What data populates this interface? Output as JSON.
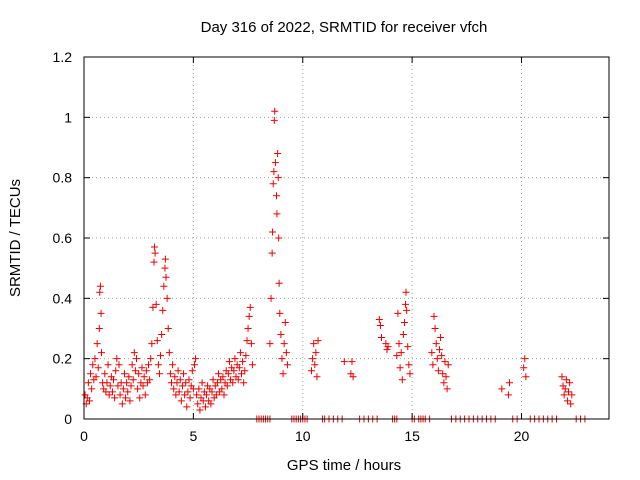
{
  "chart_data": {
    "type": "scatter",
    "title": "Day 316 of 2022, SRMTID for receiver vfch",
    "xlabel": "GPS time / hours",
    "ylabel": "SRMTID / TECUs",
    "xlim": [
      0,
      24
    ],
    "ylim": [
      0,
      1.2
    ],
    "xticks": [
      0,
      5,
      10,
      15,
      20
    ],
    "xtick_labels": [
      "0",
      "5",
      "10",
      "15",
      "20"
    ],
    "yticks": [
      0,
      0.2,
      0.4,
      0.6,
      0.8,
      1.0,
      1.2
    ],
    "ytick_labels": [
      "0",
      "0.2",
      "0.4",
      "0.6",
      "0.8",
      "1",
      "1.2"
    ],
    "grid": true,
    "marker": "+",
    "color": "#ee0000",
    "series": [
      {
        "name": "SRMTID",
        "points": [
          [
            0.05,
            0.08
          ],
          [
            0.1,
            0.05
          ],
          [
            0.15,
            0.07
          ],
          [
            0.2,
            0.12
          ],
          [
            0.25,
            0.06
          ],
          [
            0.3,
            0.15
          ],
          [
            0.35,
            0.1
          ],
          [
            0.4,
            0.18
          ],
          [
            0.45,
            0.13
          ],
          [
            0.5,
            0.2
          ],
          [
            0.55,
            0.14
          ],
          [
            0.6,
            0.25
          ],
          [
            0.65,
            0.17
          ],
          [
            0.7,
            0.3
          ],
          [
            0.72,
            0.42
          ],
          [
            0.75,
            0.44
          ],
          [
            0.78,
            0.35
          ],
          [
            0.8,
            0.22
          ],
          [
            0.85,
            0.12
          ],
          [
            0.9,
            0.1
          ],
          [
            0.95,
            0.15
          ],
          [
            1.0,
            0.09
          ],
          [
            1.05,
            0.12
          ],
          [
            1.1,
            0.18
          ],
          [
            1.15,
            0.08
          ],
          [
            1.2,
            0.11
          ],
          [
            1.25,
            0.14
          ],
          [
            1.3,
            0.09
          ],
          [
            1.35,
            0.13
          ],
          [
            1.4,
            0.07
          ],
          [
            1.45,
            0.16
          ],
          [
            1.5,
            0.2
          ],
          [
            1.55,
            0.11
          ],
          [
            1.6,
            0.18
          ],
          [
            1.65,
            0.08
          ],
          [
            1.7,
            0.12
          ],
          [
            1.75,
            0.05
          ],
          [
            1.8,
            0.1
          ],
          [
            1.85,
            0.15
          ],
          [
            1.9,
            0.07
          ],
          [
            1.95,
            0.12
          ],
          [
            2.0,
            0.09
          ],
          [
            2.05,
            0.14
          ],
          [
            2.1,
            0.06
          ],
          [
            2.15,
            0.11
          ],
          [
            2.2,
            0.18
          ],
          [
            2.25,
            0.13
          ],
          [
            2.3,
            0.22
          ],
          [
            2.35,
            0.16
          ],
          [
            2.4,
            0.2
          ],
          [
            2.45,
            0.1
          ],
          [
            2.5,
            0.15
          ],
          [
            2.55,
            0.07
          ],
          [
            2.6,
            0.12
          ],
          [
            2.65,
            0.17
          ],
          [
            2.7,
            0.11
          ],
          [
            2.75,
            0.14
          ],
          [
            2.8,
            0.08
          ],
          [
            2.85,
            0.16
          ],
          [
            2.9,
            0.12
          ],
          [
            2.95,
            0.18
          ],
          [
            3.0,
            0.13
          ],
          [
            3.05,
            0.2
          ],
          [
            3.1,
            0.25
          ],
          [
            3.15,
            0.37
          ],
          [
            3.2,
            0.52
          ],
          [
            3.22,
            0.57
          ],
          [
            3.25,
            0.55
          ],
          [
            3.3,
            0.38
          ],
          [
            3.35,
            0.26
          ],
          [
            3.4,
            0.18
          ],
          [
            3.45,
            0.15
          ],
          [
            3.5,
            0.21
          ],
          [
            3.55,
            0.28
          ],
          [
            3.6,
            0.36
          ],
          [
            3.65,
            0.44
          ],
          [
            3.7,
            0.5
          ],
          [
            3.72,
            0.53
          ],
          [
            3.75,
            0.47
          ],
          [
            3.8,
            0.4
          ],
          [
            3.85,
            0.3
          ],
          [
            3.9,
            0.22
          ],
          [
            3.95,
            0.15
          ],
          [
            4.0,
            0.12
          ],
          [
            4.05,
            0.18
          ],
          [
            4.1,
            0.1
          ],
          [
            4.15,
            0.14
          ],
          [
            4.2,
            0.08
          ],
          [
            4.25,
            0.12
          ],
          [
            4.3,
            0.16
          ],
          [
            4.35,
            0.09
          ],
          [
            4.4,
            0.13
          ],
          [
            4.45,
            0.06
          ],
          [
            4.5,
            0.11
          ],
          [
            4.55,
            0.15
          ],
          [
            4.6,
            0.08
          ],
          [
            4.65,
            0.12
          ],
          [
            4.7,
            0.04
          ],
          [
            4.75,
            0.09
          ],
          [
            4.8,
            0.13
          ],
          [
            4.85,
            0.07
          ],
          [
            4.9,
            0.11
          ],
          [
            4.95,
            0.16
          ],
          [
            5.0,
            0.1
          ],
          [
            5.05,
            0.18
          ],
          [
            5.1,
            0.2
          ],
          [
            5.15,
            0.08
          ],
          [
            5.2,
            0.05
          ],
          [
            5.25,
            0.1
          ],
          [
            5.3,
            0.03
          ],
          [
            5.35,
            0.07
          ],
          [
            5.4,
            0.12
          ],
          [
            5.45,
            0.06
          ],
          [
            5.5,
            0.09
          ],
          [
            5.55,
            0.04
          ],
          [
            5.6,
            0.08
          ],
          [
            5.65,
            0.11
          ],
          [
            5.7,
            0.06
          ],
          [
            5.75,
            0.1
          ],
          [
            5.8,
            0.05
          ],
          [
            5.85,
            0.09
          ],
          [
            5.9,
            0.13
          ],
          [
            5.95,
            0.07
          ],
          [
            6.0,
            0.11
          ],
          [
            6.05,
            0.08
          ],
          [
            6.1,
            0.12
          ],
          [
            6.15,
            0.15
          ],
          [
            6.2,
            0.09
          ],
          [
            6.25,
            0.13
          ],
          [
            6.3,
            0.1
          ],
          [
            6.35,
            0.14
          ],
          [
            6.4,
            0.08
          ],
          [
            6.45,
            0.12
          ],
          [
            6.5,
            0.16
          ],
          [
            6.55,
            0.11
          ],
          [
            6.6,
            0.15
          ],
          [
            6.65,
            0.19
          ],
          [
            6.7,
            0.13
          ],
          [
            6.75,
            0.17
          ],
          [
            6.8,
            0.12
          ],
          [
            6.85,
            0.16
          ],
          [
            6.9,
            0.2
          ],
          [
            6.95,
            0.14
          ],
          [
            7.0,
            0.18
          ],
          [
            7.05,
            0.13
          ],
          [
            7.1,
            0.17
          ],
          [
            7.15,
            0.22
          ],
          [
            7.2,
            0.15
          ],
          [
            7.25,
            0.19
          ],
          [
            7.3,
            0.12
          ],
          [
            7.35,
            0.16
          ],
          [
            7.4,
            0.21
          ],
          [
            7.45,
            0.26
          ],
          [
            7.5,
            0.3
          ],
          [
            7.55,
            0.34
          ],
          [
            7.6,
            0.37
          ],
          [
            7.65,
            0.25
          ],
          [
            7.7,
            0.18
          ],
          [
            7.9,
            0.0
          ],
          [
            8.0,
            0.0
          ],
          [
            8.1,
            0.0
          ],
          [
            8.2,
            0.0
          ],
          [
            8.3,
            0.0
          ],
          [
            8.4,
            0.0
          ],
          [
            8.5,
            0.0
          ],
          [
            8.5,
            0.25
          ],
          [
            8.55,
            0.4
          ],
          [
            8.6,
            0.55
          ],
          [
            8.62,
            0.62
          ],
          [
            8.65,
            0.78
          ],
          [
            8.68,
            0.82
          ],
          [
            8.7,
            0.99
          ],
          [
            8.72,
            1.02
          ],
          [
            8.75,
            0.85
          ],
          [
            8.8,
            0.74
          ],
          [
            8.82,
            0.68
          ],
          [
            8.85,
            0.88
          ],
          [
            8.88,
            0.8
          ],
          [
            8.9,
            0.6
          ],
          [
            8.92,
            0.45
          ],
          [
            8.95,
            0.35
          ],
          [
            9.0,
            0.28
          ],
          [
            9.05,
            0.2
          ],
          [
            9.1,
            0.15
          ],
          [
            9.15,
            0.25
          ],
          [
            9.2,
            0.32
          ],
          [
            9.25,
            0.22
          ],
          [
            9.3,
            0.18
          ],
          [
            9.5,
            0.0
          ],
          [
            9.6,
            0.0
          ],
          [
            9.7,
            0.0
          ],
          [
            9.8,
            0.0
          ],
          [
            9.9,
            0.0
          ],
          [
            10.0,
            0.0
          ],
          [
            10.1,
            0.0
          ],
          [
            10.2,
            0.0
          ],
          [
            10.4,
            0.16
          ],
          [
            10.45,
            0.2
          ],
          [
            10.5,
            0.25
          ],
          [
            10.55,
            0.18
          ],
          [
            10.6,
            0.22
          ],
          [
            10.65,
            0.14
          ],
          [
            10.7,
            0.26
          ],
          [
            10.9,
            0.0
          ],
          [
            11.0,
            0.0
          ],
          [
            11.2,
            0.0
          ],
          [
            11.4,
            0.0
          ],
          [
            11.6,
            0.0
          ],
          [
            11.8,
            0.0
          ],
          [
            11.9,
            0.19
          ],
          [
            12.2,
            0.15
          ],
          [
            12.25,
            0.19
          ],
          [
            12.3,
            0.14
          ],
          [
            12.6,
            0.0
          ],
          [
            12.8,
            0.0
          ],
          [
            13.0,
            0.0
          ],
          [
            13.2,
            0.0
          ],
          [
            13.4,
            0.0
          ],
          [
            13.5,
            0.33
          ],
          [
            13.55,
            0.31
          ],
          [
            13.6,
            0.27
          ],
          [
            13.8,
            0.25
          ],
          [
            13.85,
            0.23
          ],
          [
            13.9,
            0.24
          ],
          [
            14.1,
            0.0
          ],
          [
            14.2,
            0.0
          ],
          [
            14.3,
            0.0
          ],
          [
            14.3,
            0.21
          ],
          [
            14.35,
            0.35
          ],
          [
            14.4,
            0.25
          ],
          [
            14.45,
            0.17
          ],
          [
            14.5,
            0.22
          ],
          [
            14.55,
            0.13
          ],
          [
            14.6,
            0.28
          ],
          [
            14.65,
            0.32
          ],
          [
            14.7,
            0.38
          ],
          [
            14.72,
            0.42
          ],
          [
            14.75,
            0.36
          ],
          [
            14.8,
            0.24
          ],
          [
            14.85,
            0.18
          ],
          [
            14.9,
            0.15
          ],
          [
            15.0,
            0.0
          ],
          [
            15.1,
            0.0
          ],
          [
            15.3,
            0.0
          ],
          [
            15.4,
            0.0
          ],
          [
            15.5,
            0.0
          ],
          [
            15.6,
            0.0
          ],
          [
            15.8,
            0.0
          ],
          [
            15.9,
            0.22
          ],
          [
            15.95,
            0.18
          ],
          [
            16.0,
            0.34
          ],
          [
            16.05,
            0.3
          ],
          [
            16.1,
            0.25
          ],
          [
            16.15,
            0.2
          ],
          [
            16.2,
            0.16
          ],
          [
            16.25,
            0.23
          ],
          [
            16.3,
            0.27
          ],
          [
            16.35,
            0.21
          ],
          [
            16.4,
            0.15
          ],
          [
            16.45,
            0.12
          ],
          [
            16.5,
            0.19
          ],
          [
            16.55,
            0.14
          ],
          [
            16.6,
            0.1
          ],
          [
            16.65,
            0.18
          ],
          [
            16.8,
            0.0
          ],
          [
            17.0,
            0.0
          ],
          [
            17.2,
            0.0
          ],
          [
            17.4,
            0.0
          ],
          [
            17.6,
            0.0
          ],
          [
            17.8,
            0.0
          ],
          [
            18.0,
            0.0
          ],
          [
            18.2,
            0.0
          ],
          [
            18.4,
            0.0
          ],
          [
            18.6,
            0.0
          ],
          [
            18.8,
            0.0
          ],
          [
            19.1,
            0.1
          ],
          [
            19.4,
            0.08
          ],
          [
            19.45,
            0.12
          ],
          [
            19.6,
            0.0
          ],
          [
            19.8,
            0.0
          ],
          [
            20.1,
            0.17
          ],
          [
            20.15,
            0.2
          ],
          [
            20.2,
            0.14
          ],
          [
            20.4,
            0.0
          ],
          [
            20.6,
            0.0
          ],
          [
            20.8,
            0.0
          ],
          [
            21.0,
            0.0
          ],
          [
            21.2,
            0.0
          ],
          [
            21.4,
            0.0
          ],
          [
            21.6,
            0.0
          ],
          [
            21.85,
            0.14
          ],
          [
            21.9,
            0.11
          ],
          [
            21.95,
            0.08
          ],
          [
            22.0,
            0.1
          ],
          [
            22.05,
            0.13
          ],
          [
            22.1,
            0.06
          ],
          [
            22.15,
            0.09
          ],
          [
            22.2,
            0.12
          ],
          [
            22.25,
            0.05
          ],
          [
            22.3,
            0.08
          ],
          [
            22.5,
            0.0
          ],
          [
            22.7,
            0.0
          ],
          [
            22.9,
            0.0
          ]
        ]
      }
    ]
  }
}
